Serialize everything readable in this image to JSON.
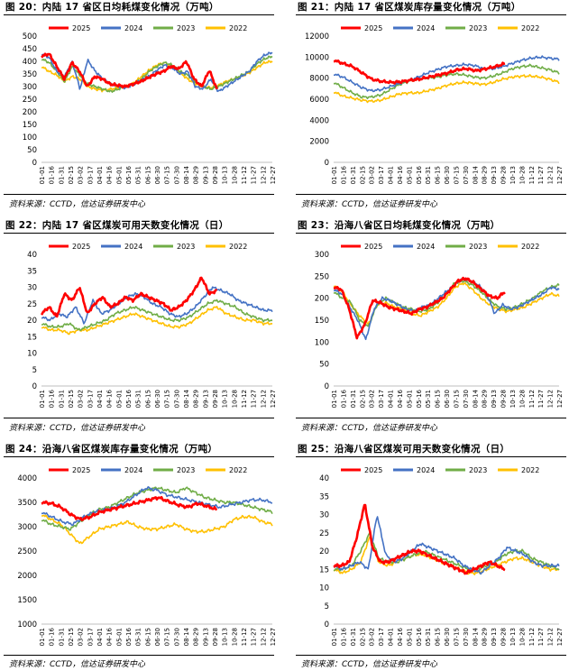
{
  "source_text": "资料来源：CCTD，信达证券研发中心",
  "series_colors": {
    "2025": "#ff0000",
    "2024": "#4472c4",
    "2023": "#70ad47",
    "2022": "#ffc000"
  },
  "x_ticks": [
    "01-01",
    "01-16",
    "01-31",
    "02-15",
    "03-02",
    "03-17",
    "04-01",
    "04-16",
    "05-01",
    "05-16",
    "05-31",
    "06-15",
    "06-30",
    "07-15",
    "07-30",
    "08-14",
    "08-29",
    "09-13",
    "09-28",
    "10-13",
    "10-28",
    "11-12",
    "11-27",
    "12-12",
    "12-27"
  ],
  "chart_data": [
    {
      "id": "fig20",
      "type": "line",
      "title": "图 20：内陆 17 省区日均耗煤变化情况（万吨）",
      "ylim": [
        0,
        500
      ],
      "yticks": [
        0,
        50,
        100,
        150,
        200,
        250,
        300,
        350,
        400,
        450,
        500
      ],
      "series": [
        {
          "name": "2025",
          "end": 0.76,
          "values": [
            420,
            430,
            380,
            330,
            395,
            360,
            300,
            340,
            330,
            310,
            305,
            300,
            310,
            320,
            335,
            350,
            360,
            380,
            370,
            400,
            330,
            300,
            365,
            290
          ]
        },
        {
          "name": "2024",
          "end": 1.0,
          "values": [
            430,
            415,
            360,
            340,
            400,
            290,
            405,
            360,
            330,
            310,
            300,
            295,
            310,
            325,
            340,
            365,
            385,
            375,
            350,
            360,
            300,
            290,
            330,
            280,
            300,
            320,
            340,
            360,
            400,
            425,
            435
          ]
        },
        {
          "name": "2023",
          "end": 1.0,
          "values": [
            410,
            395,
            360,
            320,
            380,
            345,
            310,
            300,
            290,
            280,
            290,
            300,
            310,
            330,
            360,
            380,
            395,
            385,
            360,
            345,
            320,
            300,
            290,
            300,
            315,
            330,
            345,
            360,
            390,
            410,
            420
          ]
        },
        {
          "name": "2022",
          "end": 1.0,
          "values": [
            380,
            360,
            345,
            320,
            340,
            330,
            300,
            290,
            285,
            290,
            295,
            300,
            315,
            340,
            365,
            385,
            395,
            380,
            355,
            330,
            310,
            300,
            295,
            305,
            320,
            330,
            340,
            355,
            375,
            395,
            400
          ]
        }
      ]
    },
    {
      "id": "fig21",
      "type": "line",
      "title": "图 21：内陆 17 省区煤炭库存量变化情况（万吨）",
      "ylim": [
        0,
        12000
      ],
      "yticks": [
        0,
        2000,
        4000,
        6000,
        8000,
        10000,
        12000
      ],
      "series": [
        {
          "name": "2025",
          "end": 0.76,
          "values": [
            9700,
            9400,
            9100,
            8500,
            7900,
            7700,
            7600,
            7650,
            7800,
            7900,
            8100,
            8300,
            8500,
            8800,
            8900,
            8700,
            8900,
            9100,
            9400
          ]
        },
        {
          "name": "2024",
          "end": 1.0,
          "values": [
            8400,
            8100,
            7600,
            7100,
            6800,
            6900,
            7200,
            7500,
            7800,
            8100,
            8500,
            8800,
            9100,
            9200,
            9300,
            9200,
            8900,
            8900,
            9100,
            9400,
            9700,
            9900,
            10000,
            9900,
            9800
          ]
        },
        {
          "name": "2023",
          "end": 1.0,
          "values": [
            7600,
            7100,
            6600,
            6200,
            6200,
            6400,
            6900,
            7400,
            7700,
            7900,
            8000,
            8100,
            8300,
            8400,
            8300,
            8100,
            8000,
            8200,
            8500,
            8900,
            9100,
            9200,
            9000,
            8800,
            8500
          ]
        },
        {
          "name": "2022",
          "end": 1.0,
          "values": [
            6700,
            6300,
            6100,
            5900,
            5800,
            5900,
            6200,
            6500,
            6600,
            6600,
            6800,
            7000,
            7300,
            7500,
            7600,
            7500,
            7400,
            7600,
            7900,
            8100,
            8200,
            8200,
            8100,
            7900,
            7600
          ]
        }
      ]
    },
    {
      "id": "fig22",
      "type": "line",
      "title": "图 22：内陆 17 省区煤炭可用天数变化情况（日）",
      "ylim": [
        0,
        40
      ],
      "yticks": [
        0,
        5,
        10,
        15,
        20,
        25,
        30,
        35,
        40
      ],
      "series": [
        {
          "name": "2025",
          "end": 0.76,
          "values": [
            22,
            24,
            21,
            28,
            26,
            30,
            22,
            25,
            27,
            24,
            25,
            27,
            26,
            28,
            27,
            26,
            25,
            23,
            24,
            26,
            29,
            33,
            28,
            29
          ]
        },
        {
          "name": "2024",
          "end": 1.0,
          "values": [
            21,
            20,
            22,
            21,
            24,
            19,
            26,
            22,
            23,
            25,
            27,
            28,
            27,
            25,
            24,
            22,
            21,
            22,
            24,
            27,
            30,
            29,
            28,
            26,
            25,
            24,
            23,
            23
          ]
        },
        {
          "name": "2023",
          "end": 1.0,
          "values": [
            19,
            18,
            18,
            19,
            17,
            18,
            19,
            20,
            22,
            23,
            24,
            23,
            22,
            21,
            20,
            20,
            21,
            23,
            25,
            26,
            25,
            24,
            22,
            21,
            20,
            20
          ]
        },
        {
          "name": "2022",
          "end": 1.0,
          "values": [
            18,
            17,
            17,
            16,
            17,
            17,
            18,
            19,
            20,
            21,
            22,
            21,
            20,
            19,
            18,
            18,
            19,
            21,
            23,
            24,
            22,
            21,
            20,
            20,
            19,
            19
          ]
        }
      ]
    },
    {
      "id": "fig23",
      "type": "line",
      "title": "图 23：沿海八省区日均耗煤变化情况（万吨）",
      "ylim": [
        0,
        300
      ],
      "yticks": [
        0,
        50,
        100,
        150,
        200,
        250,
        300
      ],
      "series": [
        {
          "name": "2025",
          "end": 0.76,
          "values": [
            225,
            220,
            175,
            110,
            140,
            195,
            190,
            180,
            175,
            170,
            165,
            175,
            180,
            190,
            200,
            220,
            240,
            245,
            235,
            220,
            205,
            200,
            215
          ]
        },
        {
          "name": "2024",
          "end": 1.0,
          "values": [
            220,
            210,
            180,
            150,
            105,
            175,
            200,
            195,
            185,
            175,
            170,
            180,
            185,
            200,
            215,
            230,
            245,
            240,
            230,
            210,
            165,
            185,
            175,
            180,
            190,
            200,
            210,
            225,
            220
          ]
        },
        {
          "name": "2023",
          "end": 1.0,
          "values": [
            215,
            200,
            190,
            150,
            135,
            185,
            200,
            190,
            180,
            175,
            170,
            175,
            190,
            210,
            235,
            240,
            230,
            215,
            195,
            180,
            175,
            180,
            190,
            200,
            215,
            225,
            230
          ]
        },
        {
          "name": "2022",
          "end": 1.0,
          "values": [
            230,
            215,
            185,
            160,
            140,
            185,
            190,
            180,
            175,
            165,
            160,
            170,
            180,
            200,
            225,
            235,
            220,
            200,
            185,
            175,
            170,
            175,
            180,
            190,
            200,
            210,
            205
          ]
        }
      ]
    },
    {
      "id": "fig24",
      "type": "line",
      "title": "图 24：沿海八省区煤炭库存量变化情况（万吨）",
      "ylim": [
        1000,
        4000
      ],
      "yticks": [
        1000,
        1500,
        2000,
        2500,
        3000,
        3500,
        4000
      ],
      "series": [
        {
          "name": "2025",
          "end": 0.76,
          "values": [
            3500,
            3480,
            3400,
            3250,
            3150,
            3200,
            3300,
            3350,
            3400,
            3450,
            3500,
            3550,
            3600,
            3520,
            3450,
            3400,
            3480,
            3420,
            3350
          ]
        },
        {
          "name": "2024",
          "end": 1.0,
          "values": [
            3300,
            3200,
            3100,
            3050,
            3200,
            3300,
            3350,
            3400,
            3500,
            3650,
            3800,
            3750,
            3650,
            3600,
            3550,
            3500,
            3450,
            3400,
            3450,
            3500,
            3550,
            3550,
            3500
          ]
        },
        {
          "name": "2023",
          "end": 1.0,
          "values": [
            3150,
            3050,
            3000,
            2950,
            3100,
            3250,
            3350,
            3400,
            3500,
            3600,
            3700,
            3750,
            3800,
            3750,
            3700,
            3800,
            3700,
            3600,
            3550,
            3500,
            3500,
            3450,
            3400,
            3350,
            3300
          ]
        },
        {
          "name": "2022",
          "end": 1.0,
          "values": [
            3250,
            3150,
            3050,
            2850,
            2650,
            2800,
            2950,
            3000,
            3050,
            3100,
            3000,
            2950,
            2950,
            3000,
            3050,
            2950,
            2900,
            2900,
            2950,
            3000,
            3150,
            3200,
            3200,
            3100,
            3050
          ]
        }
      ]
    },
    {
      "id": "fig25",
      "type": "line",
      "title": "图 25：沿海八省区煤炭可用天数变化情况（日）",
      "ylim": [
        0,
        40
      ],
      "yticks": [
        0,
        5,
        10,
        15,
        20,
        25,
        30,
        35,
        40
      ],
      "series": [
        {
          "name": "2025",
          "end": 0.76,
          "values": [
            16,
            16,
            17,
            24,
            33,
            21,
            17,
            17,
            18,
            19,
            20,
            20,
            19,
            18,
            17,
            16,
            15,
            14,
            15,
            16,
            17,
            16,
            15
          ]
        },
        {
          "name": "2024",
          "end": 1.0,
          "values": [
            16,
            15,
            16,
            17,
            15,
            30,
            19,
            17,
            18,
            20,
            22,
            21,
            20,
            19,
            18,
            16,
            15,
            14,
            16,
            18,
            21,
            20,
            19,
            17,
            16,
            16,
            16
          ]
        },
        {
          "name": "2023",
          "end": 1.0,
          "values": [
            15,
            15,
            16,
            20,
            25,
            18,
            17,
            17,
            18,
            19,
            20,
            19,
            18,
            17,
            16,
            15,
            15,
            16,
            17,
            19,
            20,
            20,
            18,
            17,
            16,
            15
          ]
        },
        {
          "name": "2022",
          "end": 1.0,
          "values": [
            15,
            14,
            15,
            17,
            24,
            17,
            16,
            17,
            18,
            19,
            19,
            18,
            17,
            16,
            15,
            14,
            14,
            15,
            16,
            17,
            18,
            18,
            17,
            16,
            15,
            15
          ]
        }
      ]
    }
  ]
}
